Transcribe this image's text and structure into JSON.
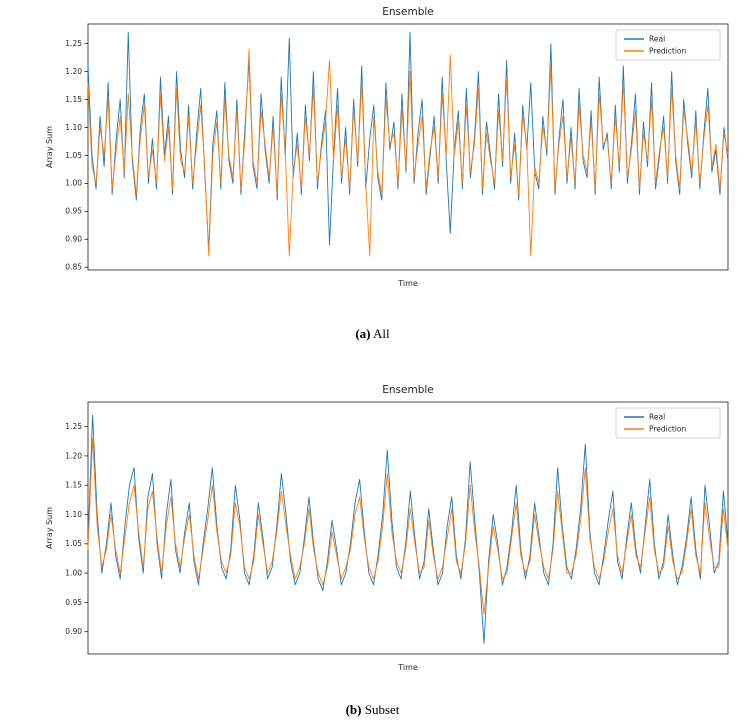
{
  "page": {
    "background": "#ffffff"
  },
  "chart_data": [
    {
      "type": "line",
      "title": "Ensemble",
      "xlabel": "Time",
      "ylabel": "Array Sum",
      "caption": {
        "label": "(a)",
        "text": "All"
      },
      "legend": {
        "position": "upper right",
        "entries": [
          "Real",
          "Prediction"
        ]
      },
      "ylim": [
        0.845,
        1.285
      ],
      "yticks": [
        0.85,
        0.9,
        0.95,
        1.0,
        1.05,
        1.1,
        1.15,
        1.2,
        1.25
      ],
      "grid": false,
      "series": [
        {
          "name": "Real",
          "color": "#1f77b4",
          "values": [
            1.21,
            1.05,
            0.99,
            1.12,
            1.03,
            1.18,
            0.98,
            1.08,
            1.15,
            1.01,
            1.27,
            1.04,
            0.97,
            1.1,
            1.16,
            1.0,
            1.08,
            0.99,
            1.19,
            1.05,
            1.12,
            0.98,
            1.2,
            1.06,
            1.01,
            1.14,
            0.99,
            1.09,
            1.17,
            1.02,
            0.88,
            1.07,
            1.13,
            0.99,
            1.18,
            1.04,
            1.0,
            1.15,
            0.98,
            1.1,
            1.22,
            1.03,
            0.99,
            1.16,
            1.06,
            1.0,
            1.12,
            0.97,
            1.19,
            1.05,
            1.26,
            1.01,
            1.09,
            0.98,
            1.14,
            1.04,
            1.2,
            0.99,
            1.07,
            1.13,
            0.89,
            1.05,
            1.17,
            1.0,
            1.1,
            0.98,
            1.15,
            1.03,
            1.21,
            0.99,
            1.08,
            1.14,
            1.01,
            0.97,
            1.18,
            1.06,
            1.11,
            0.99,
            1.16,
            1.02,
            1.27,
            1.0,
            1.09,
            1.15,
            0.98,
            1.05,
            1.12,
            1.0,
            1.19,
            1.04,
            0.91,
            1.06,
            1.13,
            0.99,
            1.17,
            1.01,
            1.08,
            1.2,
            0.98,
            1.11,
            1.05,
            0.99,
            1.16,
            1.03,
            1.22,
            1.0,
            1.09,
            0.97,
            1.14,
            1.06,
            1.18,
            1.02,
            0.99,
            1.12,
            1.05,
            1.25,
            0.98,
            1.08,
            1.15,
            1.0,
            1.1,
            0.99,
            1.17,
            1.04,
            1.01,
            1.13,
            0.98,
            1.19,
            1.06,
            1.09,
            0.99,
            1.14,
            1.02,
            1.21,
            1.0,
            1.07,
            1.16,
            0.98,
            1.11,
            1.03,
            1.18,
            0.99,
            1.05,
            1.12,
            1.0,
            1.2,
            1.04,
            0.98,
            1.15,
            1.07,
            1.01,
            1.13,
            0.99,
            1.09,
            1.17,
            1.02,
            1.06,
            0.98,
            1.1,
            1.04
          ]
        },
        {
          "name": "Prediction",
          "color": "#ff7f0e",
          "values": [
            1.18,
            1.03,
            1.0,
            1.1,
            1.05,
            1.15,
            0.99,
            1.06,
            1.12,
            1.02,
            1.16,
            1.05,
            0.98,
            1.08,
            1.14,
            1.01,
            1.06,
            1.0,
            1.16,
            1.04,
            1.1,
            0.99,
            1.17,
            1.04,
            1.02,
            1.12,
            1.0,
            1.07,
            1.14,
            1.03,
            0.87,
            1.05,
            1.11,
            1.0,
            1.15,
            1.05,
            1.01,
            1.13,
            0.99,
            1.08,
            1.24,
            1.04,
            1.0,
            1.13,
            1.07,
            1.01,
            1.1,
            0.98,
            1.16,
            1.06,
            0.87,
            1.02,
            1.07,
            0.99,
            1.12,
            1.05,
            1.17,
            1.0,
            1.06,
            1.11,
            1.22,
            1.04,
            1.14,
            1.01,
            1.08,
            0.99,
            1.13,
            1.04,
            1.18,
            1.0,
            0.87,
            1.12,
            1.02,
            0.98,
            1.15,
            1.07,
            1.09,
            1.0,
            1.13,
            1.03,
            1.2,
            1.01,
            1.07,
            1.12,
            0.99,
            1.06,
            1.1,
            1.01,
            1.16,
            1.05,
            1.23,
            1.05,
            1.11,
            1.0,
            1.14,
            1.02,
            1.07,
            1.17,
            0.99,
            1.09,
            1.04,
            1.0,
            1.13,
            1.04,
            1.19,
            1.01,
            1.07,
            0.98,
            1.12,
            1.07,
            0.87,
            1.03,
            1.0,
            1.1,
            1.06,
            1.21,
            0.99,
            1.07,
            1.12,
            1.01,
            1.08,
            1.0,
            1.14,
            1.05,
            1.02,
            1.11,
            0.99,
            1.16,
            1.07,
            1.08,
            1.0,
            1.12,
            1.03,
            1.18,
            1.01,
            1.06,
            1.13,
            0.99,
            1.09,
            1.04,
            1.15,
            1.0,
            1.06,
            1.1,
            1.01,
            1.17,
            1.05,
            0.99,
            1.13,
            1.08,
            1.02,
            1.11,
            1.0,
            1.08,
            1.14,
            1.03,
            1.07,
            0.99,
            1.09,
            1.05
          ]
        }
      ]
    },
    {
      "type": "line",
      "title": "Ensemble",
      "xlabel": "Time",
      "ylabel": "Array Sum",
      "caption": {
        "label": "(b)",
        "text": "Subset"
      },
      "legend": {
        "position": "upper right",
        "entries": [
          "Real",
          "Prediction"
        ]
      },
      "ylim": [
        0.862,
        1.292
      ],
      "yticks": [
        0.9,
        0.95,
        1.0,
        1.05,
        1.1,
        1.15,
        1.2,
        1.25
      ],
      "grid": false,
      "series": [
        {
          "name": "Real",
          "color": "#1f77b4",
          "values": [
            1.05,
            1.27,
            1.1,
            1.0,
            1.05,
            1.12,
            1.03,
            0.99,
            1.08,
            1.15,
            1.18,
            1.06,
            1.0,
            1.13,
            1.17,
            1.05,
            0.99,
            1.1,
            1.16,
            1.04,
            1.0,
            1.07,
            1.12,
            1.02,
            0.98,
            1.05,
            1.11,
            1.18,
            1.08,
            1.01,
            0.99,
            1.04,
            1.15,
            1.09,
            1.0,
            0.98,
            1.03,
            1.12,
            1.06,
            0.99,
            1.01,
            1.08,
            1.17,
            1.1,
            1.02,
            0.98,
            1.0,
            1.06,
            1.13,
            1.05,
            0.99,
            0.97,
            1.02,
            1.09,
            1.04,
            0.98,
            1.0,
            1.05,
            1.12,
            1.16,
            1.07,
            1.0,
            0.98,
            1.03,
            1.1,
            1.21,
            1.09,
            1.01,
            0.99,
            1.05,
            1.14,
            1.06,
            0.99,
            1.02,
            1.11,
            1.04,
            0.98,
            1.0,
            1.08,
            1.13,
            1.03,
            0.99,
            1.06,
            1.19,
            1.09,
            1.0,
            0.88,
            1.02,
            1.1,
            1.05,
            0.98,
            1.01,
            1.07,
            1.15,
            1.04,
            0.99,
            1.03,
            1.12,
            1.06,
            1.0,
            0.98,
            1.05,
            1.18,
            1.08,
            1.01,
            0.99,
            1.04,
            1.11,
            1.22,
            1.07,
            1.0,
            0.98,
            1.03,
            1.09,
            1.14,
            1.02,
            0.99,
            1.06,
            1.12,
            1.04,
            1.0,
            1.08,
            1.16,
            1.05,
            0.99,
            1.02,
            1.1,
            1.03,
            0.98,
            1.01,
            1.06,
            1.13,
            1.04,
            0.99,
            1.15,
            1.08,
            1.0,
            1.02,
            1.14,
            1.05
          ]
        },
        {
          "name": "Prediction",
          "color": "#ff7f0e",
          "values": [
            1.04,
            1.23,
            1.08,
            1.01,
            1.04,
            1.1,
            1.04,
            1.0,
            1.06,
            1.12,
            1.15,
            1.07,
            1.01,
            1.11,
            1.14,
            1.06,
            1.0,
            1.08,
            1.13,
            1.05,
            1.01,
            1.06,
            1.1,
            1.03,
            0.99,
            1.04,
            1.09,
            1.15,
            1.07,
            1.02,
            1.0,
            1.03,
            1.12,
            1.08,
            1.01,
            0.99,
            1.02,
            1.1,
            1.05,
            1.0,
            1.02,
            1.07,
            1.14,
            1.08,
            1.03,
            0.99,
            1.01,
            1.05,
            1.11,
            1.04,
            1.0,
            0.98,
            1.01,
            1.07,
            1.03,
            0.99,
            1.01,
            1.04,
            1.1,
            1.13,
            1.06,
            1.01,
            0.99,
            1.02,
            1.08,
            1.17,
            1.07,
            1.02,
            1.0,
            1.04,
            1.11,
            1.05,
            1.0,
            1.01,
            1.09,
            1.03,
            0.99,
            1.01,
            1.06,
            1.11,
            1.02,
            1.0,
            1.05,
            1.15,
            1.07,
            1.01,
            0.93,
            1.01,
            1.08,
            1.04,
            0.99,
            1.0,
            1.06,
            1.12,
            1.03,
            1.0,
            1.02,
            1.1,
            1.05,
            1.01,
            0.99,
            1.04,
            1.14,
            1.07,
            1.0,
            1.0,
            1.03,
            1.09,
            1.18,
            1.06,
            1.01,
            0.99,
            1.02,
            1.07,
            1.11,
            1.03,
            1.0,
            1.05,
            1.1,
            1.03,
            1.01,
            1.07,
            1.13,
            1.04,
            1.0,
            1.01,
            1.08,
            1.02,
            0.99,
            1.0,
            1.05,
            1.11,
            1.03,
            1.0,
            1.12,
            1.06,
            1.01,
            1.01,
            1.11,
            1.04
          ]
        }
      ]
    }
  ]
}
